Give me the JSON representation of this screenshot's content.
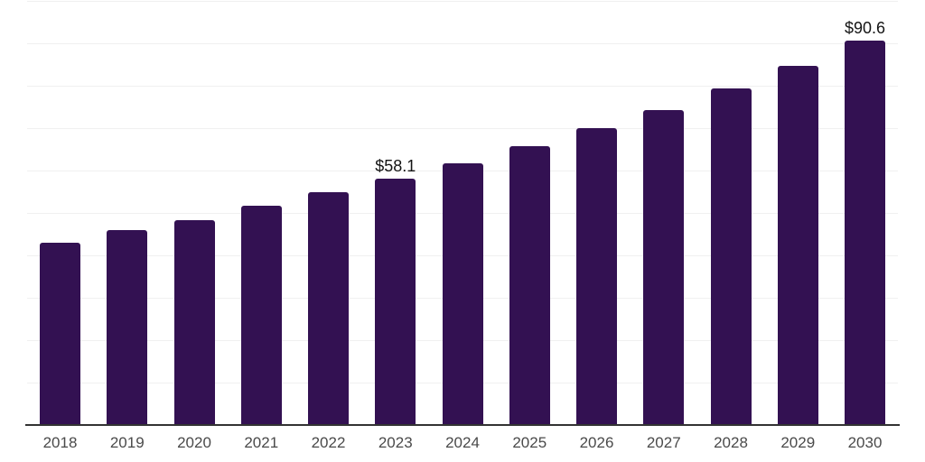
{
  "chart_data": {
    "type": "bar",
    "title": "",
    "xlabel": "",
    "ylabel": "",
    "categories": [
      "2018",
      "2019",
      "2020",
      "2021",
      "2022",
      "2023",
      "2024",
      "2025",
      "2026",
      "2027",
      "2028",
      "2029",
      "2030"
    ],
    "values": [
      42.9,
      46.0,
      48.4,
      51.6,
      54.9,
      58.1,
      61.7,
      65.7,
      70.0,
      74.3,
      79.4,
      84.7,
      90.6
    ],
    "ylim": [
      0,
      100
    ],
    "gridline_step": 10,
    "grid": "horizontal-only",
    "legend_position": "none",
    "y_axis_tick_labels_visible": false,
    "data_labels": [
      {
        "category": "2023",
        "text": "$58.1"
      },
      {
        "category": "2030",
        "text": "$90.6"
      }
    ]
  },
  "colors": {
    "bar": "#331152",
    "axis_line": "#333333",
    "gridline": "#f0f0f0",
    "tick_label": "#4a4a4a",
    "data_label": "#141414",
    "background": "#ffffff"
  }
}
